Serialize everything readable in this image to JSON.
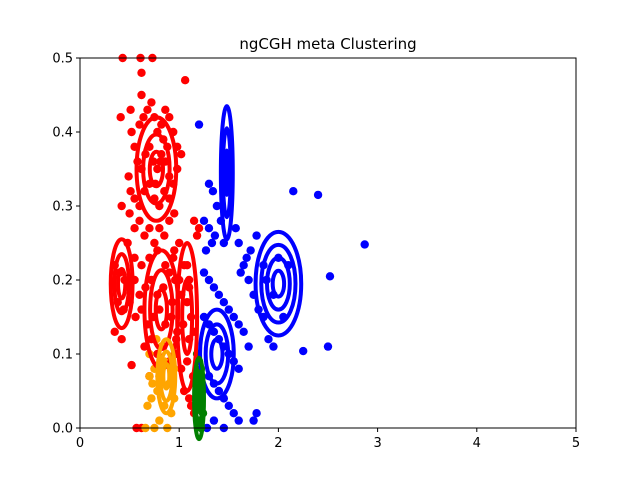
{
  "chart_data": {
    "type": "scatter",
    "title": "ngCGH meta Clustering",
    "xlabel": "",
    "ylabel": "",
    "xlim": [
      0,
      5
    ],
    "ylim": [
      0,
      0.5
    ],
    "xticks": [
      "0",
      "1",
      "2",
      "3",
      "4",
      "5"
    ],
    "yticks": [
      "0.0",
      "0.1",
      "0.2",
      "0.3",
      "0.4",
      "0.5"
    ],
    "grid": false,
    "legend": "none",
    "series": [
      {
        "color": "#ff0000",
        "points": [
          [
            0.43,
            0.5
          ],
          [
            0.61,
            0.5
          ],
          [
            0.73,
            0.5
          ],
          [
            0.62,
            0.48
          ],
          [
            1.06,
            0.47
          ],
          [
            0.62,
            0.45
          ],
          [
            0.51,
            0.43
          ],
          [
            0.41,
            0.42
          ],
          [
            0.52,
            0.4
          ],
          [
            0.55,
            0.38
          ],
          [
            0.6,
            0.41
          ],
          [
            0.64,
            0.42
          ],
          [
            0.68,
            0.43
          ],
          [
            0.72,
            0.44
          ],
          [
            0.75,
            0.42
          ],
          [
            0.78,
            0.4
          ],
          [
            0.82,
            0.41
          ],
          [
            0.86,
            0.43
          ],
          [
            0.9,
            0.42
          ],
          [
            0.94,
            0.4
          ],
          [
            0.98,
            0.38
          ],
          [
            1.02,
            0.37
          ],
          [
            0.58,
            0.36
          ],
          [
            0.62,
            0.35
          ],
          [
            0.66,
            0.37
          ],
          [
            0.7,
            0.38
          ],
          [
            0.74,
            0.36
          ],
          [
            0.78,
            0.35
          ],
          [
            0.82,
            0.37
          ],
          [
            0.86,
            0.36
          ],
          [
            0.9,
            0.34
          ],
          [
            0.94,
            0.33
          ],
          [
            0.98,
            0.35
          ],
          [
            0.49,
            0.34
          ],
          [
            0.51,
            0.32
          ],
          [
            0.55,
            0.31
          ],
          [
            0.6,
            0.3
          ],
          [
            0.65,
            0.32
          ],
          [
            0.7,
            0.33
          ],
          [
            0.75,
            0.31
          ],
          [
            0.8,
            0.3
          ],
          [
            0.85,
            0.32
          ],
          [
            0.9,
            0.31
          ],
          [
            0.95,
            0.29
          ],
          [
            0.42,
            0.3
          ],
          [
            0.5,
            0.29
          ],
          [
            0.55,
            0.27
          ],
          [
            0.6,
            0.28
          ],
          [
            0.65,
            0.26
          ],
          [
            0.7,
            0.27
          ],
          [
            0.75,
            0.25
          ],
          [
            0.8,
            0.27
          ],
          [
            0.85,
            0.26
          ],
          [
            0.9,
            0.28
          ],
          [
            1.15,
            0.28
          ],
          [
            1.2,
            0.27
          ],
          [
            1.18,
            0.26
          ],
          [
            1.0,
            0.25
          ],
          [
            0.95,
            0.24
          ],
          [
            0.48,
            0.25
          ],
          [
            0.55,
            0.23
          ],
          [
            0.62,
            0.22
          ],
          [
            0.7,
            0.23
          ],
          [
            0.78,
            0.24
          ],
          [
            0.86,
            0.22
          ],
          [
            0.94,
            0.23
          ],
          [
            1.05,
            0.22
          ],
          [
            1.1,
            0.2
          ],
          [
            0.35,
            0.22
          ],
          [
            0.4,
            0.21
          ],
          [
            0.45,
            0.2
          ],
          [
            0.5,
            0.19
          ],
          [
            0.55,
            0.2
          ],
          [
            0.6,
            0.18
          ],
          [
            0.66,
            0.19
          ],
          [
            0.72,
            0.2
          ],
          [
            0.78,
            0.18
          ],
          [
            0.84,
            0.19
          ],
          [
            0.9,
            0.21
          ],
          [
            0.96,
            0.2
          ],
          [
            1.02,
            0.18
          ],
          [
            1.08,
            0.17
          ],
          [
            0.38,
            0.17
          ],
          [
            0.44,
            0.16
          ],
          [
            0.5,
            0.17
          ],
          [
            0.56,
            0.15
          ],
          [
            0.62,
            0.16
          ],
          [
            0.68,
            0.14
          ],
          [
            0.74,
            0.15
          ],
          [
            0.8,
            0.16
          ],
          [
            0.86,
            0.14
          ],
          [
            0.92,
            0.15
          ],
          [
            0.98,
            0.13
          ],
          [
            1.04,
            0.14
          ],
          [
            1.1,
            0.12
          ],
          [
            1.15,
            0.13
          ],
          [
            0.35,
            0.13
          ],
          [
            0.42,
            0.12
          ],
          [
            0.65,
            0.11
          ],
          [
            0.72,
            0.12
          ],
          [
            0.78,
            0.1
          ],
          [
            0.84,
            0.11
          ],
          [
            0.9,
            0.09
          ],
          [
            0.96,
            0.1
          ],
          [
            1.02,
            0.08
          ],
          [
            1.08,
            0.09
          ],
          [
            1.14,
            0.07
          ],
          [
            1.18,
            0.06
          ],
          [
            0.52,
            0.085
          ],
          [
            0.7,
            0.07
          ],
          [
            1.05,
            0.05
          ],
          [
            1.1,
            0.04
          ],
          [
            1.12,
            0.03
          ],
          [
            1.15,
            0.02
          ],
          [
            0.57,
            0.0
          ],
          [
            0.62,
            0.0
          ],
          [
            0.81,
            0.36
          ],
          [
            0.84,
            0.39
          ],
          [
            0.76,
            0.33
          ],
          [
            0.88,
            0.38
          ],
          [
            1.1,
            0.19
          ],
          [
            1.08,
            0.22
          ],
          [
            1.12,
            0.15
          ],
          [
            0.97,
            0.12
          ],
          [
            0.93,
            0.17
          ],
          [
            1.0,
            0.2
          ]
        ]
      },
      {
        "color": "#ffa500",
        "points": [
          [
            0.7,
            0.1
          ],
          [
            0.75,
            0.08
          ],
          [
            0.8,
            0.07
          ],
          [
            0.85,
            0.09
          ],
          [
            0.9,
            0.06
          ],
          [
            0.78,
            0.05
          ],
          [
            0.72,
            0.04
          ],
          [
            0.68,
            0.03
          ],
          [
            0.85,
            0.03
          ],
          [
            0.92,
            0.02
          ],
          [
            0.8,
            0.01
          ],
          [
            0.75,
            0.0
          ],
          [
            0.66,
            0.0
          ],
          [
            0.88,
            0.0
          ],
          [
            0.95,
            0.04
          ],
          [
            0.82,
            0.11
          ],
          [
            0.77,
            0.12
          ],
          [
            0.73,
            0.06
          ],
          [
            0.95,
            0.08
          ],
          [
            0.7,
            0.07
          ]
        ]
      },
      {
        "color": "#0000ff",
        "points": [
          [
            1.2,
            0.41
          ],
          [
            1.3,
            0.33
          ],
          [
            1.34,
            0.32
          ],
          [
            1.38,
            0.3
          ],
          [
            1.42,
            0.28
          ],
          [
            1.3,
            0.27
          ],
          [
            1.25,
            0.28
          ],
          [
            1.36,
            0.26
          ],
          [
            1.33,
            0.25
          ],
          [
            1.27,
            0.24
          ],
          [
            1.45,
            0.25
          ],
          [
            1.57,
            0.27
          ],
          [
            1.6,
            0.25
          ],
          [
            1.65,
            0.22
          ],
          [
            1.7,
            0.2
          ],
          [
            1.75,
            0.18
          ],
          [
            1.8,
            0.16
          ],
          [
            1.85,
            0.15
          ],
          [
            1.9,
            0.12
          ],
          [
            1.95,
            0.11
          ],
          [
            2.0,
            0.23
          ],
          [
            2.1,
            0.22
          ],
          [
            2.15,
            0.32
          ],
          [
            2.4,
            0.315
          ],
          [
            2.87,
            0.248
          ],
          [
            2.52,
            0.205
          ],
          [
            2.5,
            0.11
          ],
          [
            2.25,
            0.104
          ],
          [
            2.05,
            0.15
          ],
          [
            1.95,
            0.18
          ],
          [
            1.25,
            0.21
          ],
          [
            1.3,
            0.2
          ],
          [
            1.35,
            0.19
          ],
          [
            1.4,
            0.18
          ],
          [
            1.45,
            0.17
          ],
          [
            1.5,
            0.16
          ],
          [
            1.55,
            0.15
          ],
          [
            1.6,
            0.14
          ],
          [
            1.65,
            0.13
          ],
          [
            1.7,
            0.11
          ],
          [
            1.25,
            0.15
          ],
          [
            1.3,
            0.14
          ],
          [
            1.35,
            0.13
          ],
          [
            1.4,
            0.12
          ],
          [
            1.45,
            0.11
          ],
          [
            1.5,
            0.1
          ],
          [
            1.55,
            0.09
          ],
          [
            1.6,
            0.08
          ],
          [
            1.3,
            0.07
          ],
          [
            1.35,
            0.06
          ],
          [
            1.4,
            0.05
          ],
          [
            1.45,
            0.04
          ],
          [
            1.5,
            0.03
          ],
          [
            1.55,
            0.02
          ],
          [
            1.6,
            0.01
          ],
          [
            1.35,
            0.01
          ],
          [
            1.28,
            0.0
          ],
          [
            1.45,
            0.0
          ],
          [
            1.75,
            0.01
          ],
          [
            1.78,
            0.02
          ],
          [
            1.62,
            0.21
          ],
          [
            1.68,
            0.23
          ],
          [
            1.72,
            0.24
          ],
          [
            1.78,
            0.26
          ],
          [
            1.85,
            0.22
          ],
          [
            1.88,
            0.2
          ]
        ]
      },
      {
        "color": "#008000",
        "points": [
          [
            1.18,
            0.1
          ],
          [
            1.2,
            0.09
          ],
          [
            1.22,
            0.08
          ],
          [
            1.19,
            0.07
          ],
          [
            1.21,
            0.06
          ],
          [
            1.23,
            0.05
          ],
          [
            1.2,
            0.04
          ],
          [
            1.22,
            0.03
          ],
          [
            1.24,
            0.02
          ],
          [
            1.2,
            0.01
          ],
          [
            1.22,
            0.0
          ]
        ]
      }
    ],
    "ellipses": [
      {
        "color": "#ff0000",
        "cx": 0.77,
        "cy": 0.35,
        "rx": 0.2,
        "ry": 0.07,
        "rings": 3
      },
      {
        "color": "#ff0000",
        "cx": 0.42,
        "cy": 0.195,
        "rx": 0.11,
        "ry": 0.06,
        "rings": 3
      },
      {
        "color": "#ff0000",
        "cx": 0.82,
        "cy": 0.16,
        "rx": 0.17,
        "ry": 0.08,
        "rings": 3
      },
      {
        "color": "#ff0000",
        "cx": 1.08,
        "cy": 0.15,
        "rx": 0.1,
        "ry": 0.1,
        "rings": 2
      },
      {
        "color": "#ffa500",
        "cx": 0.87,
        "cy": 0.07,
        "rx": 0.09,
        "ry": 0.05,
        "rings": 3
      },
      {
        "color": "#0000ff",
        "cx": 1.48,
        "cy": 0.345,
        "rx": 0.06,
        "ry": 0.09,
        "rings": 3
      },
      {
        "color": "#0000ff",
        "cx": 2.0,
        "cy": 0.195,
        "rx": 0.23,
        "ry": 0.07,
        "rings": 4
      },
      {
        "color": "#0000ff",
        "cx": 1.38,
        "cy": 0.1,
        "rx": 0.17,
        "ry": 0.06,
        "rings": 3
      },
      {
        "color": "#008000",
        "cx": 1.2,
        "cy": 0.04,
        "rx": 0.05,
        "ry": 0.055,
        "rings": 3
      }
    ]
  }
}
